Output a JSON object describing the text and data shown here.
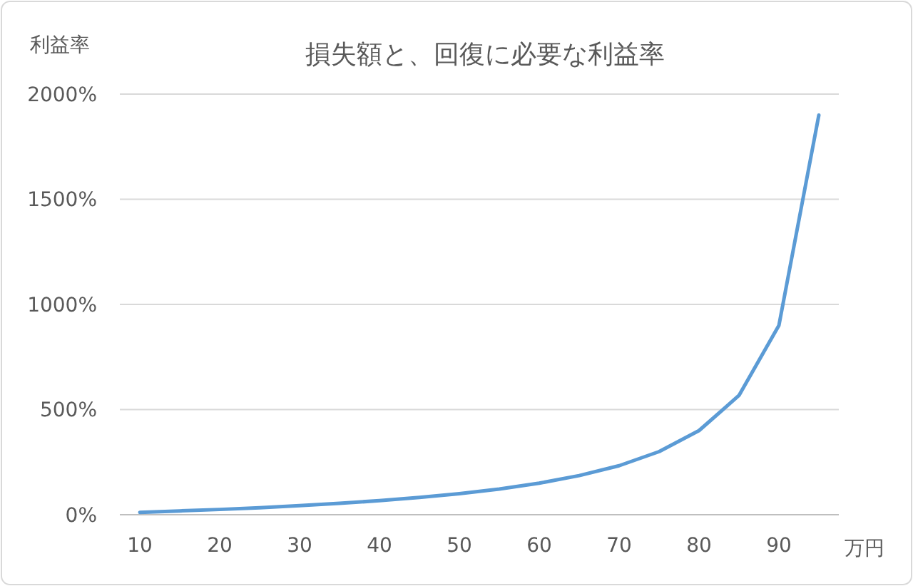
{
  "chart_data": {
    "type": "line",
    "title": "損失額と、回復に必要な利益率",
    "ylabel": "利益率",
    "xlabel": "万円",
    "categories": [
      "10",
      null,
      "20",
      null,
      "30",
      null,
      "40",
      null,
      "50",
      null,
      "60",
      null,
      "70",
      null,
      "80",
      null,
      "90",
      null
    ],
    "series": [
      {
        "color": "#5b9bd5",
        "values": [
          11,
          18,
          25,
          33,
          43,
          54,
          67,
          82,
          100,
          122,
          150,
          186,
          233,
          300,
          400,
          567,
          900,
          1900
        ]
      }
    ],
    "ylim": [
      0,
      2000
    ],
    "yticks": [
      {
        "value": 0,
        "label": "0%"
      },
      {
        "value": 500,
        "label": "500%"
      },
      {
        "value": 1000,
        "label": "1000%"
      },
      {
        "value": 1500,
        "label": "1500%"
      },
      {
        "value": 2000,
        "label": "2000%"
      }
    ],
    "grid": "y",
    "marker": "none",
    "line_style": "solid"
  }
}
